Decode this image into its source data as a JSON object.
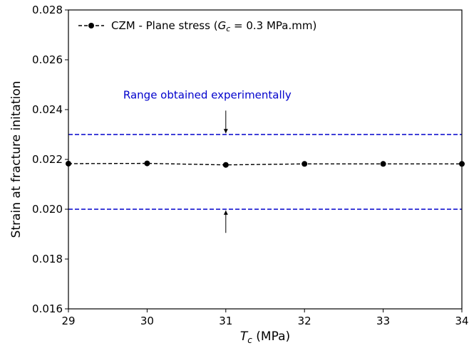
{
  "chart_data": {
    "type": "line",
    "xlabel_symbol": "T",
    "xlabel_subscript": "c",
    "xlabel_unit": " (MPa)",
    "ylabel": "Strain at fracture initation",
    "xlim": [
      29,
      34
    ],
    "ylim": [
      0.016,
      0.028
    ],
    "x_ticks": [
      "29",
      "30",
      "31",
      "32",
      "33",
      "34"
    ],
    "y_ticks": [
      "0.016",
      "0.018",
      "0.020",
      "0.022",
      "0.024",
      "0.026",
      "0.028"
    ],
    "grid": false,
    "legend_position": "top-left",
    "series": [
      {
        "name_prefix": "CZM - Plane stress (",
        "name_symbol": "G",
        "name_subscript": "c",
        "name_suffix": " = 0.3 MPa.mm)",
        "color": "#000000",
        "linestyle": "dashed",
        "marker": "circle",
        "x": [
          29,
          30,
          31,
          32,
          33,
          34
        ],
        "y": [
          0.02183,
          0.02184,
          0.02178,
          0.02182,
          0.02182,
          0.02182
        ]
      }
    ],
    "reference_lines": [
      {
        "y": 0.023,
        "color": "#0000cc",
        "linestyle": "dashed"
      },
      {
        "y": 0.02,
        "color": "#0000cc",
        "linestyle": "dashed"
      }
    ],
    "annotation": {
      "text": "Range obtained experimentally",
      "color": "#0000cc",
      "arrow_x": 31,
      "upper_arrow_from": 0.02396,
      "upper_arrow_to": 0.02305,
      "lower_arrow_from": 0.01905,
      "lower_arrow_to": 0.01995,
      "text_y": 0.02445
    }
  }
}
